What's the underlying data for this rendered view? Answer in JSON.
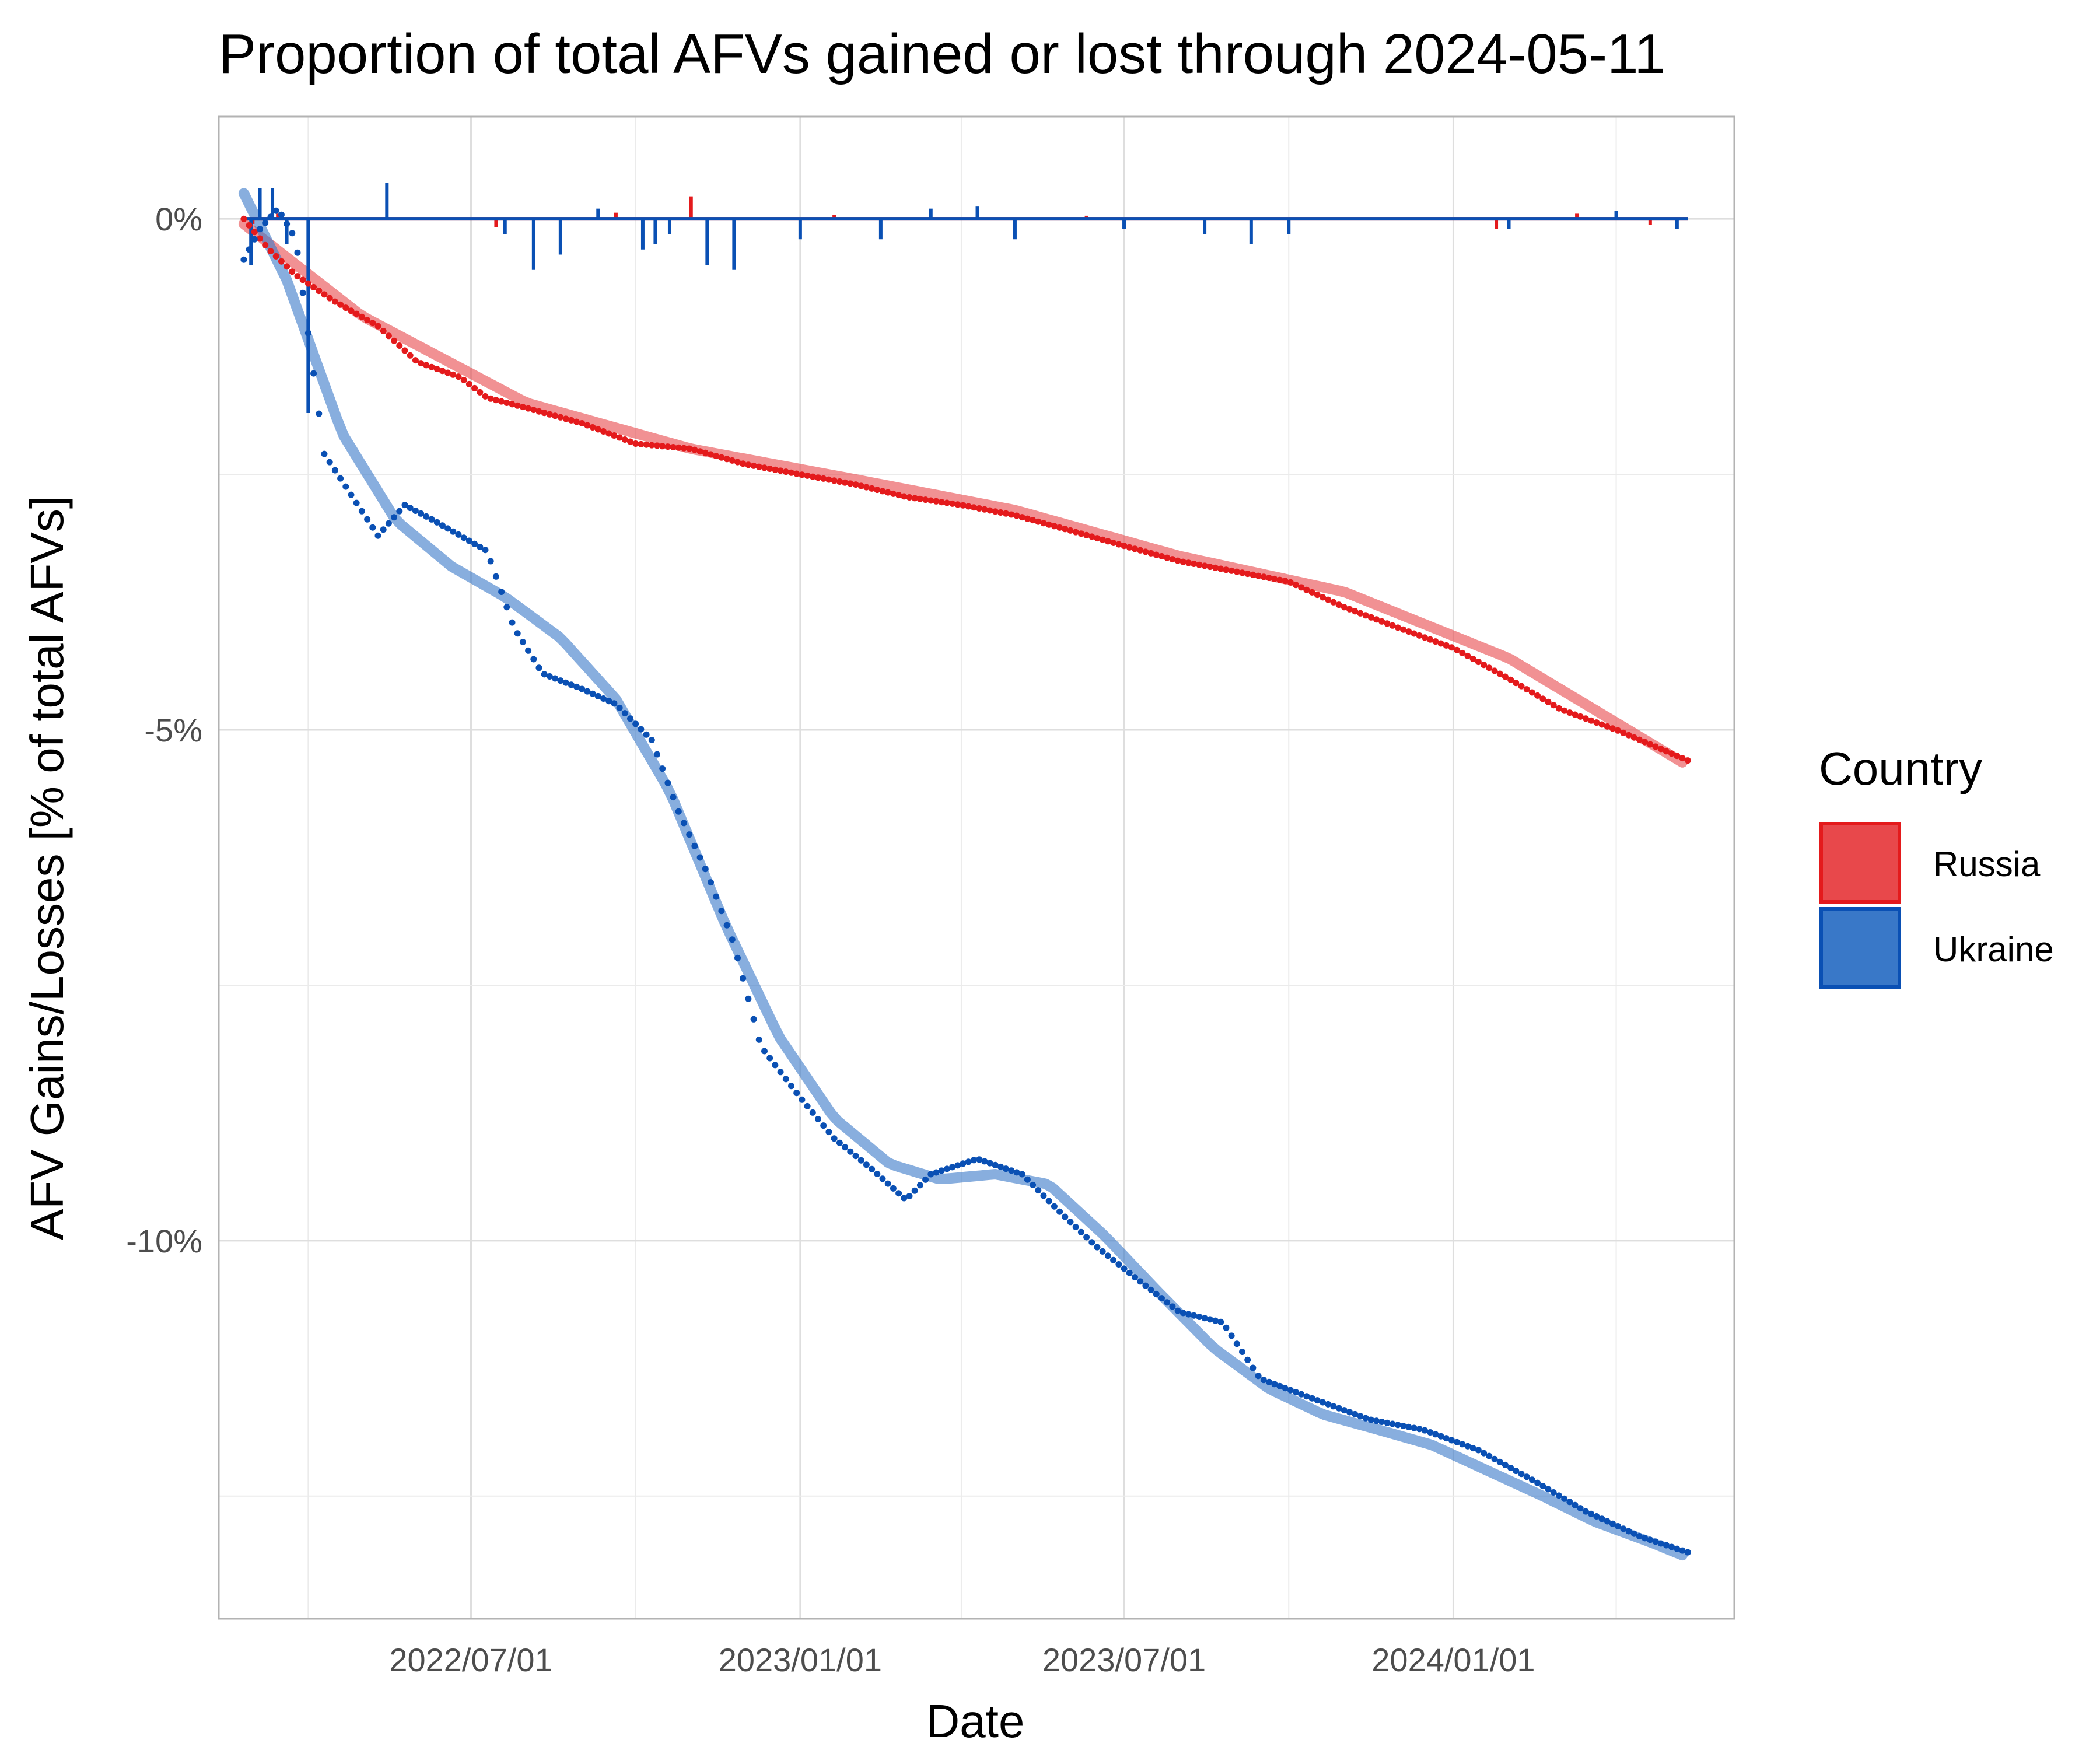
{
  "chart_data": {
    "type": "line",
    "title": "Proportion of total AFVs gained or lost through 2024-05-11",
    "xlabel": "Date",
    "ylabel": "AFV Gains/Losses [% of total AFVs]",
    "x_ticks": [
      "2022/07/01",
      "2023/01/01",
      "2023/07/01",
      "2024/01/01"
    ],
    "y_ticks": [
      {
        "value": 0,
        "label": "0%"
      },
      {
        "value": -5,
        "label": "-5%"
      },
      {
        "value": -10,
        "label": "-10%"
      }
    ],
    "xlim": [
      "2022-02-10",
      "2024-06-06"
    ],
    "ylim": [
      -13.7,
      1.0
    ],
    "grid": true,
    "legend": {
      "title": "Country",
      "position": "right"
    },
    "series": [
      {
        "name": "Russia",
        "color": "#e41a1c",
        "fill": "#e8484b",
        "cumulative": [
          [
            "2022-02-24",
            0.0
          ],
          [
            "2022-03-10",
            -0.3
          ],
          [
            "2022-03-25",
            -0.55
          ],
          [
            "2022-04-15",
            -0.8
          ],
          [
            "2022-05-10",
            -1.05
          ],
          [
            "2022-06-01",
            -1.4
          ],
          [
            "2022-06-25",
            -1.55
          ],
          [
            "2022-07-10",
            -1.75
          ],
          [
            "2022-08-01",
            -1.85
          ],
          [
            "2022-09-01",
            -2.0
          ],
          [
            "2022-10-01",
            -2.2
          ],
          [
            "2022-11-01",
            -2.25
          ],
          [
            "2022-12-01",
            -2.4
          ],
          [
            "2023-01-01",
            -2.5
          ],
          [
            "2023-02-01",
            -2.6
          ],
          [
            "2023-03-01",
            -2.72
          ],
          [
            "2023-04-01",
            -2.8
          ],
          [
            "2023-05-01",
            -2.9
          ],
          [
            "2023-06-01",
            -3.05
          ],
          [
            "2023-07-01",
            -3.2
          ],
          [
            "2023-08-01",
            -3.35
          ],
          [
            "2023-09-01",
            -3.45
          ],
          [
            "2023-10-01",
            -3.55
          ],
          [
            "2023-11-01",
            -3.8
          ],
          [
            "2023-12-01",
            -4.0
          ],
          [
            "2024-01-01",
            -4.2
          ],
          [
            "2024-02-01",
            -4.5
          ],
          [
            "2024-03-01",
            -4.8
          ],
          [
            "2024-04-01",
            -5.0
          ],
          [
            "2024-05-11",
            -5.3
          ]
        ],
        "smooth": [
          [
            "2022-02-24",
            -0.05
          ],
          [
            "2022-05-01",
            -0.95
          ],
          [
            "2022-08-01",
            -1.8
          ],
          [
            "2022-11-01",
            -2.25
          ],
          [
            "2023-02-01",
            -2.55
          ],
          [
            "2023-05-01",
            -2.85
          ],
          [
            "2023-08-01",
            -3.3
          ],
          [
            "2023-11-01",
            -3.65
          ],
          [
            "2024-02-01",
            -4.3
          ],
          [
            "2024-05-11",
            -5.35
          ]
        ],
        "daily_changes": [
          [
            "2022-03-01",
            -0.05
          ],
          [
            "2022-03-15",
            0.05
          ],
          [
            "2022-07-15",
            -0.08
          ],
          [
            "2022-09-20",
            0.06
          ],
          [
            "2022-11-01",
            0.22
          ],
          [
            "2023-01-20",
            0.04
          ],
          [
            "2023-06-10",
            0.03
          ],
          [
            "2024-01-25",
            -0.1
          ],
          [
            "2024-03-10",
            0.05
          ],
          [
            "2024-04-20",
            -0.06
          ]
        ]
      },
      {
        "name": "Ukraine",
        "color": "#0a50b4",
        "fill": "#3978c8",
        "cumulative": [
          [
            "2022-02-24",
            -0.4
          ],
          [
            "2022-03-05",
            -0.1
          ],
          [
            "2022-03-15",
            0.1
          ],
          [
            "2022-03-25",
            -0.2
          ],
          [
            "2022-04-10",
            -2.3
          ],
          [
            "2022-04-25",
            -2.7
          ],
          [
            "2022-05-10",
            -3.1
          ],
          [
            "2022-05-25",
            -2.8
          ],
          [
            "2022-06-10",
            -2.95
          ],
          [
            "2022-06-25",
            -3.1
          ],
          [
            "2022-07-10",
            -3.25
          ],
          [
            "2022-07-25",
            -4.0
          ],
          [
            "2022-08-10",
            -4.45
          ],
          [
            "2022-09-01",
            -4.6
          ],
          [
            "2022-09-20",
            -4.75
          ],
          [
            "2022-10-10",
            -5.1
          ],
          [
            "2022-10-25",
            -5.8
          ],
          [
            "2022-11-10",
            -6.4
          ],
          [
            "2022-11-25",
            -7.1
          ],
          [
            "2022-12-10",
            -8.1
          ],
          [
            "2023-01-01",
            -8.6
          ],
          [
            "2023-01-20",
            -9.0
          ],
          [
            "2023-02-10",
            -9.3
          ],
          [
            "2023-03-01",
            -9.6
          ],
          [
            "2023-03-15",
            -9.35
          ],
          [
            "2023-04-10",
            -9.2
          ],
          [
            "2023-05-05",
            -9.35
          ],
          [
            "2023-05-25",
            -9.7
          ],
          [
            "2023-06-15",
            -10.05
          ],
          [
            "2023-07-10",
            -10.4
          ],
          [
            "2023-08-01",
            -10.7
          ],
          [
            "2023-08-25",
            -10.8
          ],
          [
            "2023-09-15",
            -11.35
          ],
          [
            "2023-10-15",
            -11.55
          ],
          [
            "2023-11-15",
            -11.75
          ],
          [
            "2023-12-15",
            -11.85
          ],
          [
            "2024-01-15",
            -12.05
          ],
          [
            "2024-02-15",
            -12.35
          ],
          [
            "2024-03-15",
            -12.65
          ],
          [
            "2024-04-15",
            -12.9
          ],
          [
            "2024-05-11",
            -13.05
          ]
        ],
        "smooth": [
          [
            "2022-02-24",
            0.25
          ],
          [
            "2022-03-20",
            -0.6
          ],
          [
            "2022-04-20",
            -2.1
          ],
          [
            "2022-05-20",
            -2.95
          ],
          [
            "2022-06-20",
            -3.4
          ],
          [
            "2022-07-20",
            -3.7
          ],
          [
            "2022-08-20",
            -4.1
          ],
          [
            "2022-09-20",
            -4.7
          ],
          [
            "2022-10-20",
            -5.6
          ],
          [
            "2022-11-20",
            -6.9
          ],
          [
            "2022-12-20",
            -8.0
          ],
          [
            "2023-01-20",
            -8.8
          ],
          [
            "2023-02-20",
            -9.25
          ],
          [
            "2023-03-20",
            -9.4
          ],
          [
            "2023-04-20",
            -9.35
          ],
          [
            "2023-05-20",
            -9.45
          ],
          [
            "2023-06-20",
            -9.95
          ],
          [
            "2023-07-20",
            -10.5
          ],
          [
            "2023-08-20",
            -11.05
          ],
          [
            "2023-09-20",
            -11.45
          ],
          [
            "2023-10-20",
            -11.7
          ],
          [
            "2023-11-20",
            -11.85
          ],
          [
            "2023-12-20",
            -12.0
          ],
          [
            "2024-01-20",
            -12.25
          ],
          [
            "2024-02-20",
            -12.5
          ],
          [
            "2024-03-20",
            -12.75
          ],
          [
            "2024-04-20",
            -12.95
          ],
          [
            "2024-05-11",
            -13.1
          ]
        ],
        "daily_changes": [
          [
            "2022-02-28",
            -0.45
          ],
          [
            "2022-03-05",
            0.3
          ],
          [
            "2022-03-12",
            0.3
          ],
          [
            "2022-03-20",
            -0.25
          ],
          [
            "2022-04-01",
            -1.9
          ],
          [
            "2022-05-15",
            0.35
          ],
          [
            "2022-07-20",
            -0.15
          ],
          [
            "2022-08-05",
            -0.5
          ],
          [
            "2022-08-20",
            -0.35
          ],
          [
            "2022-09-10",
            0.1
          ],
          [
            "2022-10-05",
            -0.3
          ],
          [
            "2022-10-12",
            -0.25
          ],
          [
            "2022-10-20",
            -0.15
          ],
          [
            "2022-11-10",
            -0.45
          ],
          [
            "2022-11-25",
            -0.5
          ],
          [
            "2023-01-01",
            -0.2
          ],
          [
            "2023-02-15",
            -0.2
          ],
          [
            "2023-03-15",
            0.1
          ],
          [
            "2023-04-10",
            0.12
          ],
          [
            "2023-05-01",
            -0.2
          ],
          [
            "2023-07-01",
            -0.1
          ],
          [
            "2023-08-15",
            -0.15
          ],
          [
            "2023-09-10",
            -0.25
          ],
          [
            "2023-10-01",
            -0.15
          ],
          [
            "2024-02-01",
            -0.1
          ],
          [
            "2024-04-01",
            0.08
          ],
          [
            "2024-05-05",
            -0.1
          ]
        ]
      }
    ]
  }
}
